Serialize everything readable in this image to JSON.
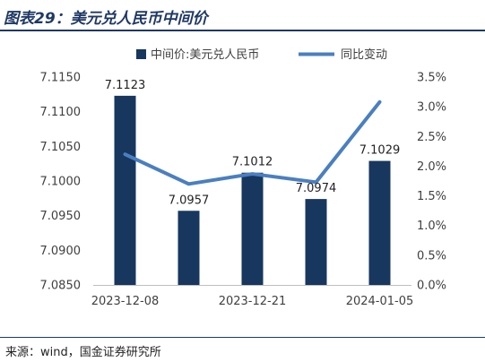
{
  "title": "图表29：美元兑人民币中间价",
  "source": "来源：wind，国金证券研究所",
  "colors": {
    "bar": "#17375e",
    "line": "#4a7fc1",
    "title": "#1f3864",
    "text": "#404040"
  },
  "chart_data": {
    "type": "bar",
    "x_tick_labels": [
      "2023-12-08",
      "2023-12-21",
      "2024-01-05"
    ],
    "series": [
      {
        "name": "中间价:美元兑人民币",
        "type": "bar",
        "axis": "left",
        "values": [
          7.1123,
          7.0957,
          7.1012,
          7.0974,
          7.1029
        ],
        "labels": [
          "7.1123",
          "7.0957",
          "7.1012",
          "7.0974",
          "7.1029"
        ]
      },
      {
        "name": "同比变动",
        "type": "line",
        "axis": "right",
        "values": [
          2.2,
          1.7,
          1.87,
          1.73,
          3.08
        ]
      }
    ],
    "y_left": {
      "min": 7.085,
      "max": 7.115,
      "ticks": [
        "7.0850",
        "7.0900",
        "7.0950",
        "7.1000",
        "7.1050",
        "7.1100",
        "7.1150"
      ]
    },
    "y_right": {
      "min": 0,
      "max": 3.5,
      "ticks": [
        "0.0%",
        "0.5%",
        "1.0%",
        "1.5%",
        "2.0%",
        "2.5%",
        "3.0%",
        "3.5%"
      ]
    },
    "legend_position": "top"
  }
}
